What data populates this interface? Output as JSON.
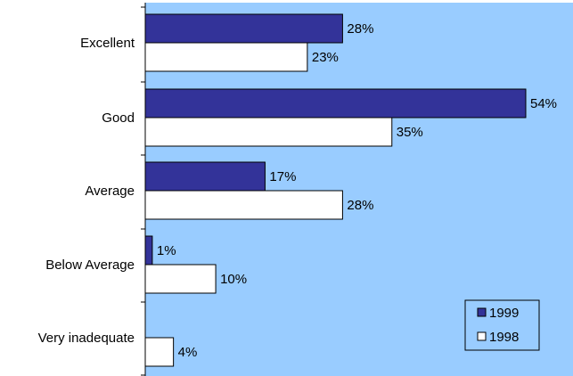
{
  "chart_data": {
    "type": "bar",
    "orientation": "horizontal",
    "categories": [
      "Excellent",
      "Good",
      "Average",
      "Below Average",
      "Very inadequate"
    ],
    "series": [
      {
        "name": "1999",
        "values": [
          28,
          54,
          17,
          1,
          0
        ],
        "labels": [
          "28%",
          "54%",
          "17%",
          "1%",
          ""
        ],
        "color": "#333399"
      },
      {
        "name": "1998",
        "values": [
          23,
          35,
          28,
          10,
          4
        ],
        "labels": [
          "23%",
          "35%",
          "28%",
          "10%",
          "4%"
        ],
        "color": "#ffffff"
      }
    ],
    "xlim": [
      0,
      54
    ],
    "value_format": "percent",
    "grid": false,
    "plot_background": "#99ccff",
    "legend": "bottom-right"
  }
}
